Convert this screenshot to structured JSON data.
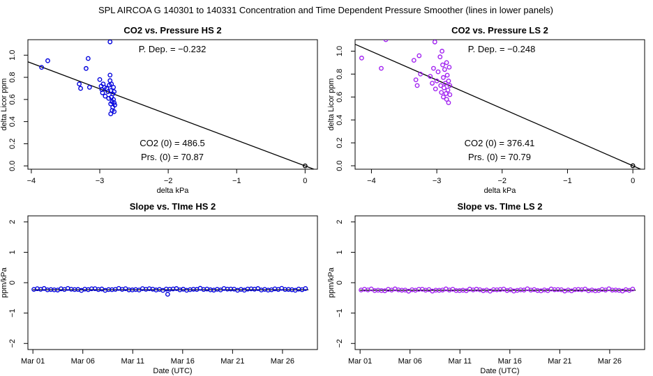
{
  "page_title": "SPL   AIRCOA G   140301 to 140331   Concentration and Time Dependent Pressure Smoother (lines in lower panels)",
  "colors": {
    "hs": "#0000dd",
    "ls": "#a020f0",
    "axis": "#000000",
    "line": "#000000"
  },
  "chart_data": [
    {
      "id": "hs-pressure",
      "type": "scatter",
      "title": "CO2 vs. Pressure HS 2",
      "xlabel": "delta kPa",
      "ylabel": "delta Licor ppm",
      "xlim": [
        -4.05,
        0.18
      ],
      "ylim": [
        -0.03,
        1.14
      ],
      "xticks": [
        -4,
        -3,
        -2,
        -1,
        0
      ],
      "xtick_labels": [
        "−4",
        "−3",
        "−2",
        "−1",
        "0"
      ],
      "yticks": [
        0.0,
        0.2,
        0.4,
        0.6,
        0.8,
        1.0
      ],
      "ytick_labels": [
        "0.0",
        "0.2",
        "0.4",
        "0.6",
        "0.8",
        "1.0"
      ],
      "annotations": {
        "dep": "P. Dep. =  −0.232",
        "co2": "CO2 (0) =  486.5",
        "prs": "Prs. (0) =  70.87"
      },
      "fit_line": {
        "x": [
          -4.05,
          0.18
        ],
        "y": [
          0.94,
          -0.042
        ]
      },
      "points": [
        [
          -3.85,
          0.89
        ],
        [
          -3.76,
          0.95
        ],
        [
          -3.3,
          0.74
        ],
        [
          -3.28,
          0.7
        ],
        [
          -3.2,
          0.88
        ],
        [
          -3.17,
          0.97
        ],
        [
          -3.15,
          0.71
        ],
        [
          -3.0,
          0.78
        ],
        [
          -2.98,
          0.72
        ],
        [
          -2.97,
          0.69
        ],
        [
          -2.96,
          0.66
        ],
        [
          -2.95,
          0.74
        ],
        [
          -2.93,
          0.71
        ],
        [
          -2.92,
          0.63
        ],
        [
          -2.9,
          0.7
        ],
        [
          -2.88,
          0.67
        ],
        [
          -2.87,
          0.61
        ],
        [
          -2.86,
          0.73
        ],
        [
          -2.85,
          1.12
        ],
        [
          -2.85,
          0.82
        ],
        [
          -2.85,
          0.77
        ],
        [
          -2.84,
          0.68
        ],
        [
          -2.84,
          0.56
        ],
        [
          -2.84,
          0.47
        ],
        [
          -2.83,
          0.74
        ],
        [
          -2.83,
          0.62
        ],
        [
          -2.82,
          0.58
        ],
        [
          -2.82,
          0.5
        ],
        [
          -2.81,
          0.65
        ],
        [
          -2.81,
          0.53
        ],
        [
          -2.8,
          0.71
        ],
        [
          -2.8,
          0.6
        ],
        [
          -2.79,
          0.57
        ],
        [
          -2.79,
          0.49
        ],
        [
          -2.79,
          0.67
        ],
        [
          -2.78,
          0.55
        ],
        [
          0.0,
          0.0
        ]
      ]
    },
    {
      "id": "ls-pressure",
      "type": "scatter",
      "title": "CO2 vs. Pressure LS 2",
      "xlabel": "delta kPa",
      "ylabel": "delta Licor ppm",
      "xlim": [
        -4.25,
        0.18
      ],
      "ylim": [
        -0.03,
        1.1
      ],
      "xticks": [
        -4,
        -3,
        -2,
        -1,
        0
      ],
      "xtick_labels": [
        "−4",
        "−3",
        "−2",
        "−1",
        "0"
      ],
      "yticks": [
        0.0,
        0.2,
        0.4,
        0.6,
        0.8,
        1.0
      ],
      "ytick_labels": [
        "0.0",
        "0.2",
        "0.4",
        "0.6",
        "0.8",
        "1.0"
      ],
      "annotations": {
        "dep": "P. Dep. =  −0.248",
        "co2": "CO2 (0) =  376.41",
        "prs": "Prs. (0) =  70.79"
      },
      "fit_line": {
        "x": [
          -4.25,
          0.18
        ],
        "y": [
          1.06,
          -0.045
        ]
      },
      "points": [
        [
          -4.15,
          0.94
        ],
        [
          -3.85,
          0.85
        ],
        [
          -3.78,
          1.1
        ],
        [
          -3.35,
          0.92
        ],
        [
          -3.32,
          0.75
        ],
        [
          -3.3,
          0.7
        ],
        [
          -3.27,
          0.96
        ],
        [
          -3.25,
          0.8
        ],
        [
          -3.1,
          0.78
        ],
        [
          -3.07,
          0.72
        ],
        [
          -3.05,
          0.85
        ],
        [
          -3.03,
          1.08
        ],
        [
          -3.02,
          0.67
        ],
        [
          -3.0,
          0.74
        ],
        [
          -2.98,
          0.82
        ],
        [
          -2.95,
          0.95
        ],
        [
          -2.94,
          0.7
        ],
        [
          -2.93,
          0.64
        ],
        [
          -2.92,
          1.0
        ],
        [
          -2.91,
          0.88
        ],
        [
          -2.9,
          0.6
        ],
        [
          -2.9,
          0.77
        ],
        [
          -2.89,
          0.68
        ],
        [
          -2.88,
          0.84
        ],
        [
          -2.87,
          0.72
        ],
        [
          -2.86,
          0.63
        ],
        [
          -2.85,
          0.9
        ],
        [
          -2.85,
          0.58
        ],
        [
          -2.84,
          0.79
        ],
        [
          -2.83,
          0.66
        ],
        [
          -2.82,
          0.55
        ],
        [
          -2.82,
          0.74
        ],
        [
          -2.81,
          0.86
        ],
        [
          -2.8,
          0.62
        ],
        [
          -2.8,
          0.7
        ],
        [
          0.0,
          0.0
        ]
      ]
    },
    {
      "id": "hs-slope",
      "type": "scatter",
      "title": "Slope vs. TIme HS 2",
      "xlabel": "Date (UTC)",
      "ylabel": "ppm/kPa",
      "xlim": [
        -0.5,
        28.5
      ],
      "ylim": [
        -2.2,
        2.2
      ],
      "xticks": [
        0,
        5,
        10,
        15,
        20,
        25
      ],
      "xtick_labels": [
        "Mar 01",
        "Mar 06",
        "Mar 11",
        "Mar 16",
        "Mar 21",
        "Mar 26"
      ],
      "yticks": [
        -2,
        -1,
        0,
        1,
        2
      ],
      "ytick_labels": [
        "−2",
        "−1",
        "0",
        "1",
        "2"
      ],
      "fit_line": {
        "x": [
          0.0,
          27.6
        ],
        "y": [
          -0.232,
          -0.232
        ]
      },
      "point_series": {
        "x_start": 0.1,
        "x_step": 0.34,
        "base": -0.22,
        "amp": 0.035,
        "min": -0.4,
        "outliers": [
          [
            13.5,
            -0.38
          ]
        ]
      }
    },
    {
      "id": "ls-slope",
      "type": "scatter",
      "title": "Slope vs. TIme LS 2",
      "xlabel": "Date (UTC)",
      "ylabel": "ppm/kPa",
      "xlim": [
        -0.5,
        28.5
      ],
      "ylim": [
        -2.2,
        2.2
      ],
      "xticks": [
        0,
        5,
        10,
        15,
        20,
        25
      ],
      "xtick_labels": [
        "Mar 01",
        "Mar 06",
        "Mar 11",
        "Mar 16",
        "Mar 21",
        "Mar 26"
      ],
      "yticks": [
        -2,
        -1,
        0,
        1,
        2
      ],
      "ytick_labels": [
        "−2",
        "−1",
        "0",
        "1",
        "2"
      ],
      "fit_line": {
        "x": [
          0.0,
          27.6
        ],
        "y": [
          -0.248,
          -0.248
        ]
      },
      "point_series": {
        "x_start": 0.1,
        "x_step": 0.34,
        "base": -0.24,
        "amp": 0.04,
        "min": -0.36,
        "outliers": []
      }
    }
  ]
}
